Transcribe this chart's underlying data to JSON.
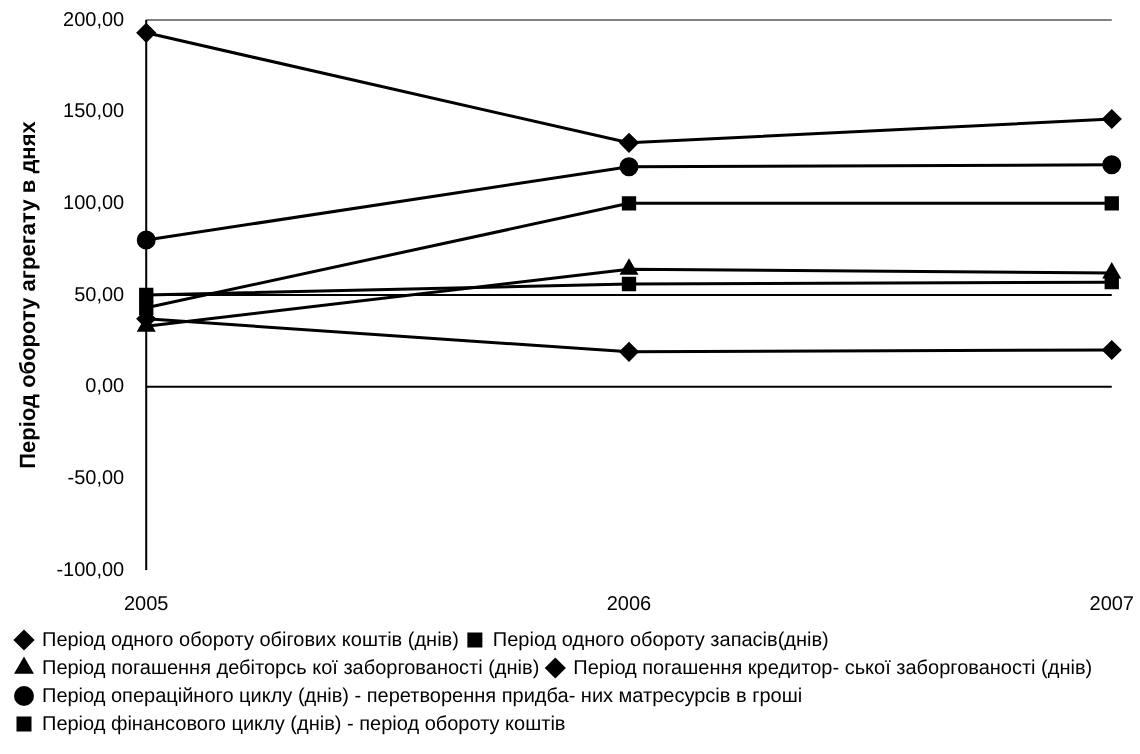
{
  "chart_data": {
    "type": "line",
    "ylabel": "Період обороту агрегату в днях",
    "categories": [
      "2005",
      "2006",
      "2007"
    ],
    "series": [
      {
        "name": "Період одного обороту обігових коштів (днів)",
        "color": "#000000",
        "marker": "diamond",
        "values": [
          193,
          133,
          146
        ]
      },
      {
        "name": "Період одного обороту запасів(днів)",
        "color": "#000000",
        "marker": "square",
        "values": [
          50,
          56,
          57
        ]
      },
      {
        "name": "Період погашення дебіторсь кої заборгованості (днів)",
        "color": "#000000",
        "marker": "triangle",
        "values": [
          33,
          64,
          62
        ]
      },
      {
        "name": "Період погашення кредитор- ської заборгованості (днів)",
        "color": "#000000",
        "marker": "diamond",
        "values": [
          37,
          19,
          20
        ]
      },
      {
        "name": "Період операційного циклу (днів) - перетворення придба- них матресурсів в гроші",
        "color": "#000000",
        "marker": "circle",
        "values": [
          80,
          120,
          121
        ]
      },
      {
        "name": "Період фінансового циклу (днів) - період обороту коштів",
        "color": "#000000",
        "marker": "square",
        "values": [
          43,
          100,
          100
        ]
      }
    ],
    "ylim": [
      -100,
      200
    ],
    "yticks": [
      {
        "value": -100,
        "label": "-100,00"
      },
      {
        "value": -50,
        "label": "-50,00"
      },
      {
        "value": 0,
        "label": "0,00"
      },
      {
        "value": 50,
        "label": "50,00"
      },
      {
        "value": 100,
        "label": "100,00"
      },
      {
        "value": 150,
        "label": "150,00"
      },
      {
        "value": 200,
        "label": "200,00"
      }
    ],
    "ref_lines": [
      {
        "axis": "y",
        "value": 0
      },
      {
        "axis": "y",
        "value": 50
      }
    ],
    "grid": false,
    "legend": "bottom"
  }
}
